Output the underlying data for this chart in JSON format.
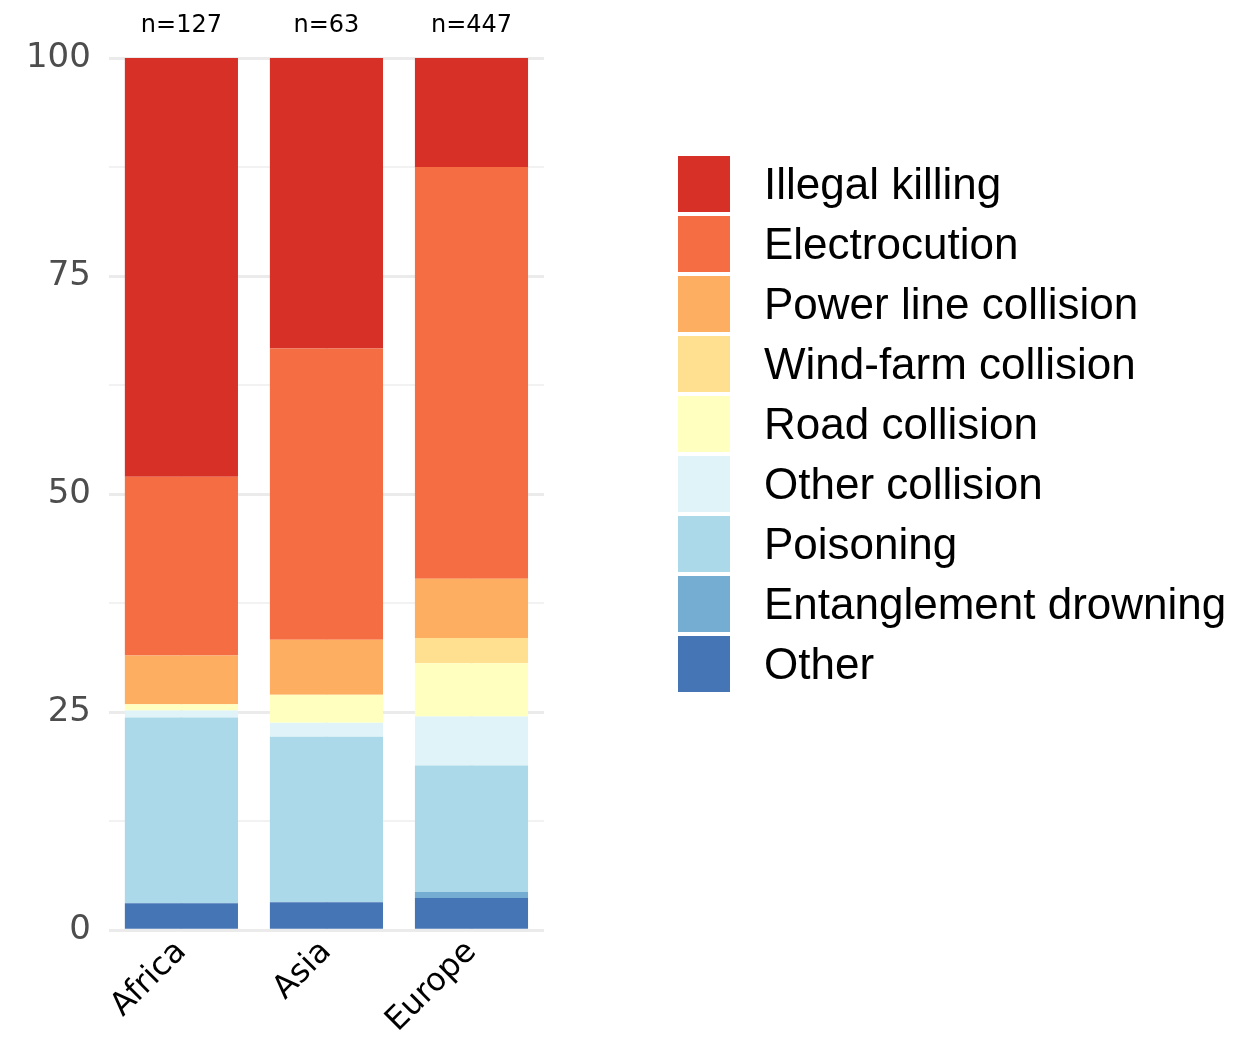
{
  "chart_data": {
    "type": "bar",
    "stacked": true,
    "categories": [
      "Africa",
      "Asia",
      "Europe"
    ],
    "series": [
      {
        "name": "Other",
        "color": "#4575b4",
        "values": [
          3.1,
          3.2,
          3.7
        ]
      },
      {
        "name": "Entanglement drowning",
        "color": "#74add1",
        "values": [
          0,
          0,
          0.7
        ]
      },
      {
        "name": "Poisoning",
        "color": "#abd9e9",
        "values": [
          21.3,
          19.0,
          14.5
        ]
      },
      {
        "name": "Other collision",
        "color": "#e0f3f8",
        "values": [
          0.8,
          1.6,
          5.6
        ]
      },
      {
        "name": "Road collision",
        "color": "#ffffbf",
        "values": [
          0.7,
          3.2,
          6.1
        ]
      },
      {
        "name": "Wind-farm collision",
        "color": "#fee090",
        "values": [
          0,
          0,
          2.9
        ]
      },
      {
        "name": "Power line collision",
        "color": "#fdae61",
        "values": [
          5.6,
          6.3,
          6.8
        ]
      },
      {
        "name": "Electrocution",
        "color": "#f46d43",
        "values": [
          20.5,
          33.4,
          47.2
        ]
      },
      {
        "name": "Illegal killing",
        "color": "#d73027",
        "values": [
          48.0,
          33.3,
          12.5
        ]
      }
    ],
    "ylim": [
      0,
      100
    ],
    "yticks": [
      0,
      {
        "value": 12.5,
        "label": null
      },
      25,
      {
        "value": 37.5,
        "label": null
      },
      50,
      {
        "value": 62.5,
        "label": null
      },
      75,
      {
        "value": 87.5,
        "label": null
      },
      100
    ],
    "annotations": [
      {
        "text": "n=127",
        "x": "Africa",
        "y": 100
      },
      {
        "text": "n=63",
        "x": "Asia",
        "y": 100
      },
      {
        "text": "n=447",
        "x": "Europe",
        "y": 100
      }
    ],
    "grid": true,
    "legend": "right"
  }
}
